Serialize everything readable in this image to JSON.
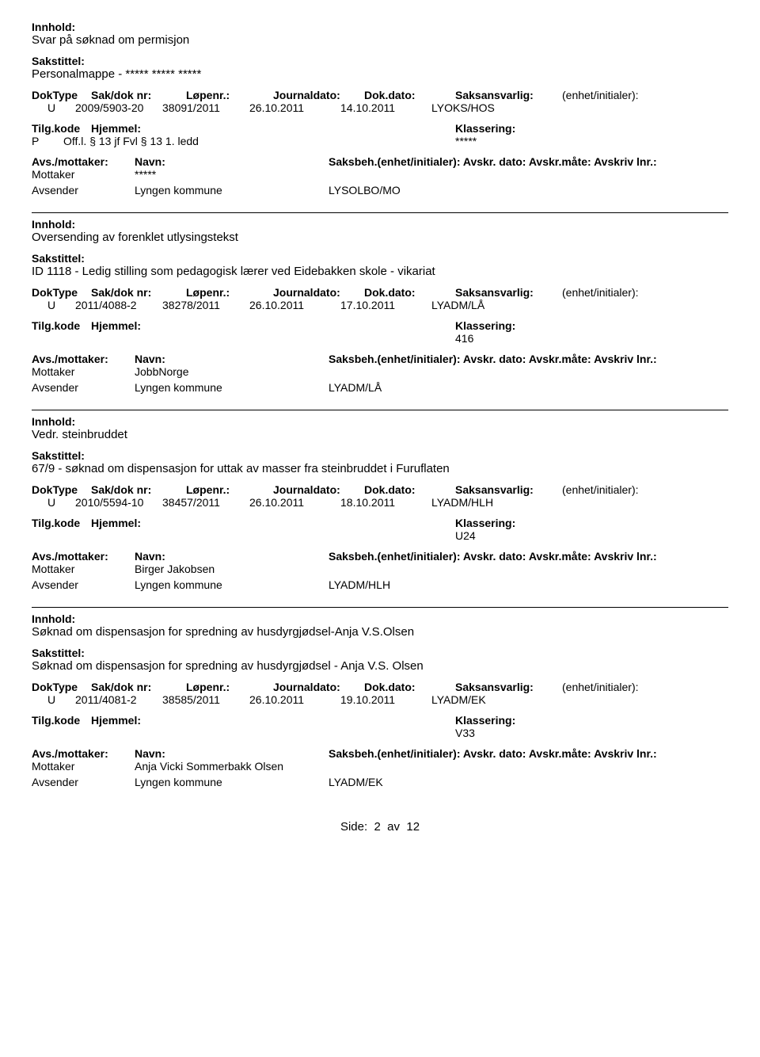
{
  "labels": {
    "innhold": "Innhold:",
    "sakstittel": "Sakstittel:",
    "doktype": "DokType",
    "sakdok": "Sak/dok nr:",
    "lopenr": "Løpenr.:",
    "journaldato": "Journaldato:",
    "dokdato": "Dok.dato:",
    "saksansvarlig": "Saksansvarlig:",
    "enhet": "(enhet/initialer):",
    "tilgkode": "Tilg.kode",
    "hjemmel": "Hjemmel:",
    "klassering": "Klassering:",
    "avsmottaker": "Avs./mottaker:",
    "navn": "Navn:",
    "saksbeh": "Saksbeh.(enhet/initialer): Avskr. dato:  Avskr.måte: Avskriv lnr.:",
    "mottaker": "Mottaker",
    "avsender": "Avsender",
    "pageprefix": "Side:",
    "pagemid": "av",
    "pagenum": "2",
    "pagetotal": "12"
  },
  "entries": [
    {
      "innhold": "Svar på søknad om permisjon",
      "sakstittel": "Personalmappe - ***** ***** *****",
      "doktype": "U",
      "sakdok": "2009/5903-20",
      "lopenr": "38091/2011",
      "journaldato": "26.10.2011",
      "dokdato": "14.10.2011",
      "saksansvarlig": "LYOKS/HOS",
      "tilgkode": "P",
      "hjemmel": "Off.l. § 13 jf Fvl § 13 1. ledd",
      "klassering": "*****",
      "mottaker_navn": "*****",
      "mottaker_saksbeh": "",
      "avsender_navn": "Lyngen kommune",
      "avsender_saksbeh": "LYSOLBO/MO"
    },
    {
      "innhold": "Oversending av forenklet utlysingstekst",
      "sakstittel": "ID 1118 - Ledig stilling som pedagogisk lærer ved Eidebakken skole - vikariat",
      "doktype": "U",
      "sakdok": "2011/4088-2",
      "lopenr": "38278/2011",
      "journaldato": "26.10.2011",
      "dokdato": "17.10.2011",
      "saksansvarlig": "LYADM/LÅ",
      "tilgkode": "",
      "hjemmel": "",
      "klassering": "416",
      "mottaker_navn": "JobbNorge",
      "mottaker_saksbeh": "",
      "avsender_navn": "Lyngen kommune",
      "avsender_saksbeh": "LYADM/LÅ"
    },
    {
      "innhold": "Vedr. steinbruddet",
      "sakstittel": "67/9 - søknad om dispensasjon for uttak av masser fra steinbruddet i Furuflaten",
      "doktype": "U",
      "sakdok": "2010/5594-10",
      "lopenr": "38457/2011",
      "journaldato": "26.10.2011",
      "dokdato": "18.10.2011",
      "saksansvarlig": "LYADM/HLH",
      "tilgkode": "",
      "hjemmel": "",
      "klassering": "U24",
      "mottaker_navn": "Birger Jakobsen",
      "mottaker_saksbeh": "",
      "avsender_navn": "Lyngen kommune",
      "avsender_saksbeh": "LYADM/HLH"
    },
    {
      "innhold": "Søknad om dispensasjon for spredning av husdyrgjødsel-Anja V.S.Olsen",
      "sakstittel": "Søknad om dispensasjon for spredning av husdyrgjødsel - Anja V.S. Olsen",
      "doktype": "U",
      "sakdok": "2011/4081-2",
      "lopenr": "38585/2011",
      "journaldato": "26.10.2011",
      "dokdato": "19.10.2011",
      "saksansvarlig": "LYADM/EK",
      "tilgkode": "",
      "hjemmel": "",
      "klassering": "V33",
      "mottaker_navn": "Anja Vicki Sommerbakk Olsen",
      "mottaker_saksbeh": "",
      "avsender_navn": "Lyngen kommune",
      "avsender_saksbeh": "LYADM/EK"
    }
  ]
}
